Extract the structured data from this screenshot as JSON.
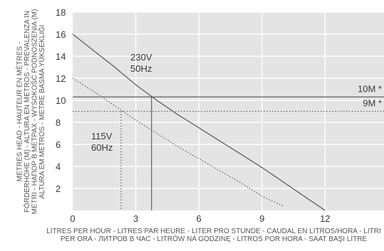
{
  "chart_data": {
    "type": "line",
    "xlabel_lines": [
      "LITRES PER HOUR - LITRES PAR HEURE - LITER PRO STUNDE - CAUDAL EN LITROS/HORA - LITRI",
      "PER ORA - ЛИТРОВ В ЧАС - LITRÓW NA GODZINĘ - LITROS POR HORA - SAAT BAŞI LİTRE"
    ],
    "ylabel_lines": [
      "METRES HEAD - HAUTEUR EN MÈTRES -",
      "FÖRDERHÖHE (M) - ALTURA EN METROS - PREVALENZA IN",
      "METRI - НАПОР В МЕТРАХ - WYSOKOŚĆ PODNOSZENIA (M)",
      "ALTURA EM METROS - METRE BASMA YÜKSEKLIĞI"
    ],
    "xlim": [
      0,
      14.8
    ],
    "ylim": [
      0,
      18
    ],
    "x_ticks": [
      0,
      3,
      6,
      9,
      12
    ],
    "y_ticks": [
      2,
      4,
      6,
      8,
      10,
      12,
      14,
      16,
      18
    ],
    "grid": true,
    "series": [
      {
        "name": "230V 50Hz",
        "label_lines": [
          "230V",
          "50Hz"
        ],
        "style": "solid",
        "color": "#555555",
        "x": [
          0,
          1,
          2,
          3,
          4,
          5,
          6,
          7,
          8,
          9,
          10,
          11,
          12
        ],
        "y": [
          16.0,
          14.5,
          13.0,
          11.4,
          10.0,
          8.7,
          7.5,
          6.3,
          5.1,
          3.9,
          2.6,
          1.3,
          0
        ]
      },
      {
        "name": "115V 60Hz",
        "label_lines": [
          "115V",
          "60Hz"
        ],
        "style": "dotted",
        "color": "#555555",
        "x": [
          0,
          1,
          2,
          3,
          4,
          5,
          6,
          7,
          8,
          9,
          10
        ],
        "y": [
          12.0,
          10.8,
          9.5,
          8.2,
          7.0,
          5.8,
          4.7,
          3.6,
          2.5,
          1.3,
          0.4
        ]
      }
    ],
    "reference_lines": [
      {
        "label": "10M *",
        "y": 10.3,
        "style": "solid"
      },
      {
        "label": "9M *",
        "y": 9.0,
        "style": "dotted"
      }
    ],
    "drop_lines": [
      {
        "x": 3.75,
        "y": 10.3,
        "style": "solid"
      },
      {
        "x": 2.3,
        "y": 9.0,
        "style": "dotted"
      }
    ]
  }
}
